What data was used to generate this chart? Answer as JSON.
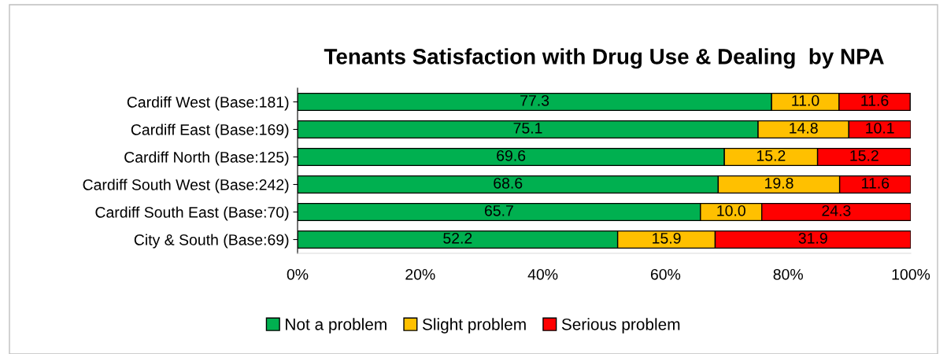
{
  "chart_data": {
    "type": "bar",
    "orientation": "horizontal",
    "stacked": true,
    "title": "Tenants Satisfaction with Drug Use & Dealing  by NPA",
    "categories": [
      "Cardiff West (Base:181)",
      "Cardiff East (Base:169)",
      "Cardiff North (Base:125)",
      "Cardiff South West (Base:242)",
      "Cardiff South East (Base:70)",
      "City & South (Base:69)"
    ],
    "series": [
      {
        "name": "Not a problem",
        "color": "#00b050",
        "values": [
          77.3,
          75.1,
          69.6,
          68.6,
          65.7,
          52.2
        ],
        "value_labels": [
          "77.3",
          "75.1",
          "69.6",
          "68.6",
          "65.7",
          "52.2"
        ]
      },
      {
        "name": "Slight problem",
        "color": "#ffc000",
        "values": [
          11.0,
          14.8,
          15.2,
          19.8,
          10.0,
          15.9
        ],
        "value_labels": [
          "11.0",
          "14.8",
          "15.2",
          "19.8",
          "10.0",
          "15.9"
        ]
      },
      {
        "name": "Serious problem",
        "color": "#ff0000",
        "values": [
          11.6,
          10.1,
          15.2,
          11.6,
          24.3,
          31.9
        ],
        "value_labels": [
          "11.6",
          "10.1",
          "15.2",
          "11.6",
          "24.3",
          "31.9"
        ]
      }
    ],
    "xlim": [
      0,
      100
    ],
    "xticks": [
      {
        "value": 0,
        "label": "0%"
      },
      {
        "value": 20,
        "label": "20%"
      },
      {
        "value": 40,
        "label": "40%"
      },
      {
        "value": 60,
        "label": "60%"
      },
      {
        "value": 80,
        "label": "80%"
      },
      {
        "value": 100,
        "label": "100%"
      }
    ],
    "grid": false,
    "legend": "bottom"
  }
}
